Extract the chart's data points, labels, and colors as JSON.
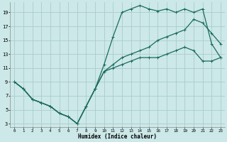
{
  "xlabel": "Humidex (Indice chaleur)",
  "bg_color": "#cce8e8",
  "grid_color": "#aacccc",
  "line_color": "#1a6b5e",
  "xlim": [
    -0.5,
    23.5
  ],
  "ylim": [
    2.5,
    20.5
  ],
  "xticks": [
    0,
    1,
    2,
    3,
    4,
    5,
    6,
    7,
    8,
    9,
    10,
    11,
    12,
    13,
    14,
    15,
    16,
    17,
    18,
    19,
    20,
    21,
    22,
    23
  ],
  "yticks": [
    3,
    5,
    7,
    9,
    11,
    13,
    15,
    17,
    19
  ],
  "line1_x": [
    0,
    1,
    2,
    3,
    4,
    5,
    6,
    7,
    8,
    9,
    10,
    11,
    12,
    13,
    14,
    15,
    16,
    17,
    18,
    19,
    20,
    21,
    22,
    23
  ],
  "line1_y": [
    9,
    8,
    6.5,
    6.0,
    5.5,
    4.5,
    4.0,
    3.0,
    5.5,
    8.0,
    11.5,
    15.5,
    19.0,
    19.5,
    20.0,
    19.5,
    19.2,
    19.5,
    19.0,
    19.5,
    19.0,
    19.5,
    14.5,
    12.5
  ],
  "line2_x": [
    0,
    1,
    2,
    3,
    4,
    5,
    6,
    7,
    8,
    9,
    10,
    11,
    12,
    13,
    14,
    15,
    16,
    17,
    18,
    19,
    20,
    21,
    22,
    23
  ],
  "line2_y": [
    9,
    8,
    6.5,
    6.0,
    5.5,
    4.5,
    4.0,
    3.0,
    5.5,
    8.0,
    10.5,
    11.5,
    12.5,
    13.0,
    13.5,
    14.0,
    15.0,
    15.5,
    16.0,
    16.5,
    18.0,
    17.5,
    16.0,
    14.5
  ],
  "line3_x": [
    0,
    1,
    2,
    3,
    4,
    5,
    6,
    7,
    8,
    9,
    10,
    11,
    12,
    13,
    14,
    15,
    16,
    17,
    18,
    19,
    20,
    21,
    22,
    23
  ],
  "line3_y": [
    9,
    8,
    6.5,
    6.0,
    5.5,
    4.5,
    4.0,
    3.0,
    5.5,
    8.0,
    10.5,
    11.0,
    11.5,
    12.0,
    12.5,
    12.5,
    12.5,
    13.0,
    13.5,
    14.0,
    13.5,
    12.0,
    12.0,
    12.5
  ],
  "xlabel_fontsize": 5.5,
  "tick_fontsize_x": 4.2,
  "tick_fontsize_y": 5.0
}
